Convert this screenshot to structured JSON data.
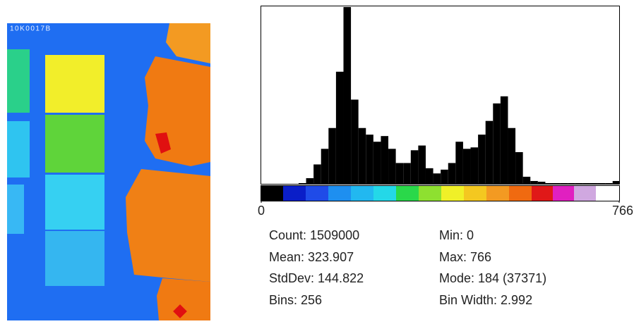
{
  "image": {
    "label": "10K0017B"
  },
  "chart_data": {
    "type": "histogram",
    "bins": [
      0,
      16,
      32,
      48,
      64,
      80,
      96,
      112,
      128,
      144,
      160,
      176,
      192,
      208,
      224,
      240,
      256,
      272,
      288,
      304,
      320,
      336,
      352,
      368,
      384,
      400,
      416,
      432,
      448,
      464,
      480,
      496,
      512,
      528,
      544,
      560,
      576,
      592,
      608,
      624,
      640,
      656,
      672,
      688,
      704,
      720,
      736,
      752,
      766
    ],
    "values": [
      0,
      0,
      0,
      0,
      0,
      150,
      1200,
      4100,
      7400,
      11800,
      23700,
      37371,
      17800,
      11800,
      10400,
      8900,
      10100,
      7400,
      4400,
      4400,
      7100,
      8100,
      3300,
      2200,
      3000,
      4400,
      8900,
      7400,
      7700,
      10400,
      13300,
      17000,
      18500,
      11800,
      6700,
      1500,
      600,
      450,
      150,
      150,
      150,
      150,
      150,
      150,
      150,
      150,
      150,
      600
    ],
    "color": "#000000",
    "xlim": [
      0,
      766
    ],
    "xticks": [
      0,
      766
    ]
  },
  "stats": {
    "count": "Count: 1509000",
    "mean": "Mean: 323.907",
    "stddev": "StdDev: 144.822",
    "bins": "Bins: 256",
    "min": "Min: 0",
    "max": "Max: 766",
    "mode": "Mode: 184 (37371)",
    "bin_width": "Bin Width: 2.992"
  }
}
